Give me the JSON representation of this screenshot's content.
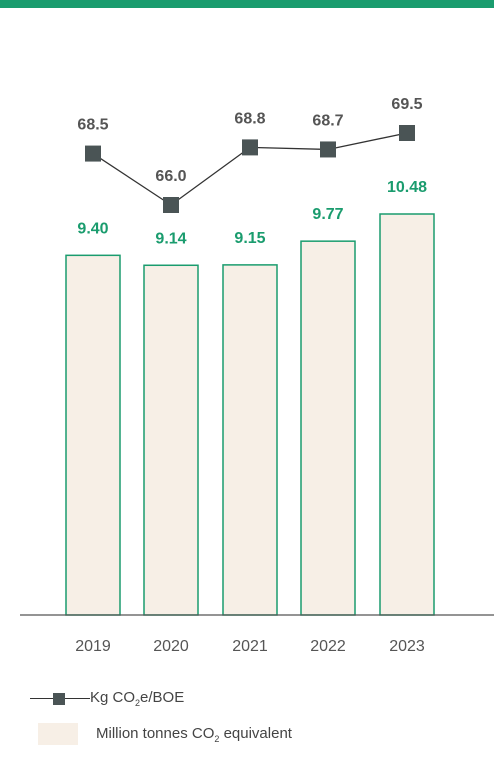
{
  "colors": {
    "top_band": "#1a9c6e",
    "bar_fill": "#f7efe6",
    "bar_stroke": "#1a9c6e",
    "bar_label": "#1a9c6e",
    "line": "#333333",
    "marker": "#4a5455",
    "line_label": "#555555",
    "axis": "#555555",
    "tick_label": "#555555"
  },
  "legend": {
    "line_prefix": "Kg CO",
    "line_sub": "2",
    "line_suffix": "e/BOE",
    "bar_prefix": "Million tonnes CO",
    "bar_sub": "2",
    "bar_suffix": " equivalent"
  },
  "chart_data": {
    "type": "bar",
    "categories": [
      "2019",
      "2020",
      "2021",
      "2022",
      "2023"
    ],
    "series": [
      {
        "values": [
          9.4,
          9.14,
          9.15,
          9.77,
          10.48
        ],
        "labels": [
          "9.40",
          "9.14",
          "9.15",
          "9.77",
          "10.48"
        ],
        "kind": "bar"
      },
      {
        "values": [
          68.5,
          66.0,
          68.8,
          68.7,
          69.5
        ],
        "labels": [
          "68.5",
          "66.0",
          "68.8",
          "68.7",
          "69.5"
        ],
        "kind": "line"
      }
    ],
    "title": "",
    "xlabel": "",
    "ylabel": "",
    "ylim_bar": [
      0,
      10.48
    ],
    "ylim_line": [
      66.0,
      69.5
    ],
    "grid": false,
    "legend_position": "bottom-left"
  }
}
